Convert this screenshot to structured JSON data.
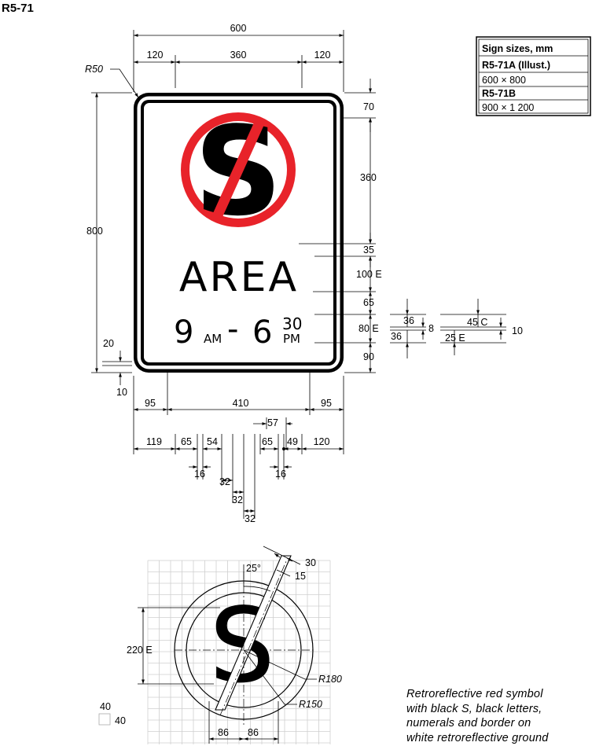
{
  "sign_code": "R5-71",
  "sign_face": {
    "symbol_letter": "S",
    "word": "AREA",
    "time_start": "9",
    "am": "AM",
    "dash": "-",
    "time_end": "6",
    "time_end_minutes": "30",
    "pm": "PM",
    "colors": {
      "red_ring": "#e8232a",
      "black": "#000000",
      "white": "#ffffff"
    }
  },
  "sizes_table": {
    "title": "Sign sizes, mm",
    "rows": [
      {
        "name": "R5-71A (Illust.)",
        "size": "600 × 800"
      },
      {
        "name": "R5-71B",
        "size": "900 × 1 200"
      }
    ]
  },
  "dimensions": {
    "width_total": "600",
    "width_left_margin": "120",
    "width_symbol": "360",
    "width_right_margin": "120",
    "corner_radius": "R50",
    "height_total": "800",
    "border_inner": "20",
    "border_outer": "10",
    "v_top": "70",
    "v_symbol": "360",
    "v_gap1": "35",
    "v_letters": "100 E",
    "v_gap2": "65",
    "v_numerals": "80 E",
    "v_bottom": "90",
    "sup_top": "36",
    "sup_bottom": "36",
    "sup_gap": "8",
    "minutes_c": "45 C",
    "minutes_e": "25 E",
    "minutes_gap": "10",
    "h_left_95": "95",
    "h_410": "410",
    "h_right_95": "95",
    "h_57": "57",
    "h_119": "119",
    "h_65a": "65",
    "h_54": "54",
    "h_16a": "16",
    "h_32a": "32",
    "h_32b": "32",
    "h_32c": "32",
    "h_65b": "65",
    "h_49": "49",
    "h_16b": "16",
    "h_120": "120"
  },
  "detail": {
    "angle": "25°",
    "bar_width": "30",
    "bar_half": "15",
    "height_label": "220 E",
    "outer_radius": "R180",
    "inner_radius": "R150",
    "left_86": "86",
    "right_86": "86",
    "grid_cell_v": "40",
    "grid_cell_h": "40"
  },
  "note_lines": [
    "Retroreflective red symbol",
    "with black S, black letters,",
    "numerals and border on",
    "white retroreflective ground"
  ]
}
